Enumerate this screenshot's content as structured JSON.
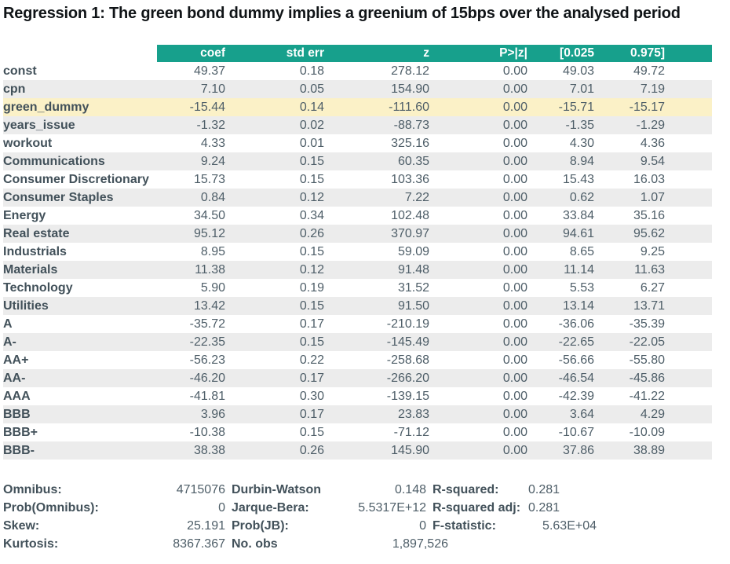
{
  "title": "Regression 1: The green bond dummy implies a greenium of 15bps over the analysed period",
  "colors": {
    "header_bg": "#17a08c",
    "row_stripe": "#ececec",
    "row_highlight": "#fbf1c7",
    "label_text": "#42515a",
    "value_text": "#4e5e68"
  },
  "chart_data": {
    "type": "table",
    "title": "Regression 1: The green bond dummy implies a greenium of 15bps over the analysed period",
    "columns": [
      "coef",
      "std err",
      "z",
      "P>|z|",
      "[0.025",
      "0.975]"
    ],
    "highlight_row_index": 2,
    "rows": [
      {
        "label": "const",
        "values": [
          "49.37",
          "0.18",
          "278.12",
          "0.00",
          "49.03",
          "49.72"
        ]
      },
      {
        "label": "cpn",
        "values": [
          "7.10",
          "0.05",
          "154.90",
          "0.00",
          "7.01",
          "7.19"
        ]
      },
      {
        "label": "green_dummy",
        "values": [
          "-15.44",
          "0.14",
          "-111.60",
          "0.00",
          "-15.71",
          "-15.17"
        ]
      },
      {
        "label": "years_issue",
        "values": [
          "-1.32",
          "0.02",
          "-88.73",
          "0.00",
          "-1.35",
          "-1.29"
        ]
      },
      {
        "label": "workout",
        "values": [
          "4.33",
          "0.01",
          "325.16",
          "0.00",
          "4.30",
          "4.36"
        ]
      },
      {
        "label": "Communications",
        "values": [
          "9.24",
          "0.15",
          "60.35",
          "0.00",
          "8.94",
          "9.54"
        ]
      },
      {
        "label": "Consumer Discretionary",
        "values": [
          "15.73",
          "0.15",
          "103.36",
          "0.00",
          "15.43",
          "16.03"
        ]
      },
      {
        "label": "Consumer Staples",
        "values": [
          "0.84",
          "0.12",
          "7.22",
          "0.00",
          "0.62",
          "1.07"
        ]
      },
      {
        "label": "Energy",
        "values": [
          "34.50",
          "0.34",
          "102.48",
          "0.00",
          "33.84",
          "35.16"
        ]
      },
      {
        "label": "Real estate",
        "values": [
          "95.12",
          "0.26",
          "370.97",
          "0.00",
          "94.61",
          "95.62"
        ]
      },
      {
        "label": "Industrials",
        "values": [
          "8.95",
          "0.15",
          "59.09",
          "0.00",
          "8.65",
          "9.25"
        ]
      },
      {
        "label": "Materials",
        "values": [
          "11.38",
          "0.12",
          "91.48",
          "0.00",
          "11.14",
          "11.63"
        ]
      },
      {
        "label": "Technology",
        "values": [
          "5.90",
          "0.19",
          "31.52",
          "0.00",
          "5.53",
          "6.27"
        ]
      },
      {
        "label": "Utilities",
        "values": [
          "13.42",
          "0.15",
          "91.50",
          "0.00",
          "13.14",
          "13.71"
        ]
      },
      {
        "label": "A",
        "values": [
          "-35.72",
          "0.17",
          "-210.19",
          "0.00",
          "-36.06",
          "-35.39"
        ]
      },
      {
        "label": "A-",
        "values": [
          "-22.35",
          "0.15",
          "-145.49",
          "0.00",
          "-22.65",
          "-22.05"
        ]
      },
      {
        "label": "AA+",
        "values": [
          "-56.23",
          "0.22",
          "-258.68",
          "0.00",
          "-56.66",
          "-55.80"
        ]
      },
      {
        "label": "AA-",
        "values": [
          "-46.20",
          "0.17",
          "-266.20",
          "0.00",
          "-46.54",
          "-45.86"
        ]
      },
      {
        "label": "AAA",
        "values": [
          "-41.81",
          "0.30",
          "-139.15",
          "0.00",
          "-42.39",
          "-41.22"
        ]
      },
      {
        "label": "BBB",
        "values": [
          "3.96",
          "0.17",
          "23.83",
          "0.00",
          "3.64",
          "4.29"
        ]
      },
      {
        "label": "BBB+",
        "values": [
          "-10.38",
          "0.15",
          "-71.12",
          "0.00",
          "-10.67",
          "-10.09"
        ]
      },
      {
        "label": "BBB-",
        "values": [
          "38.38",
          "0.26",
          "145.90",
          "0.00",
          "37.86",
          "38.89"
        ]
      }
    ],
    "stats_rows": [
      [
        {
          "label": "Omnibus:",
          "value": "4715076"
        },
        {
          "label": "Durbin-Watson",
          "value": "0.148"
        },
        {
          "label": "R-squared:",
          "value": "0.281"
        }
      ],
      [
        {
          "label": "Prob(Omnibus):",
          "value": "0"
        },
        {
          "label": "Jarque-Bera:",
          "value": "5.5317E+12"
        },
        {
          "label": "R-squared adj:",
          "value": "0.281"
        }
      ],
      [
        {
          "label": "Skew:",
          "value": "25.191"
        },
        {
          "label": "Prob(JB):",
          "value": "0"
        },
        {
          "label": "F-statistic:",
          "value": "5.63E+04"
        }
      ],
      [
        {
          "label": "Kurtosis:",
          "value": "8367.367"
        },
        {
          "label": "No. obs",
          "value": "1,897,526"
        },
        {
          "label": "",
          "value": ""
        }
      ]
    ]
  }
}
